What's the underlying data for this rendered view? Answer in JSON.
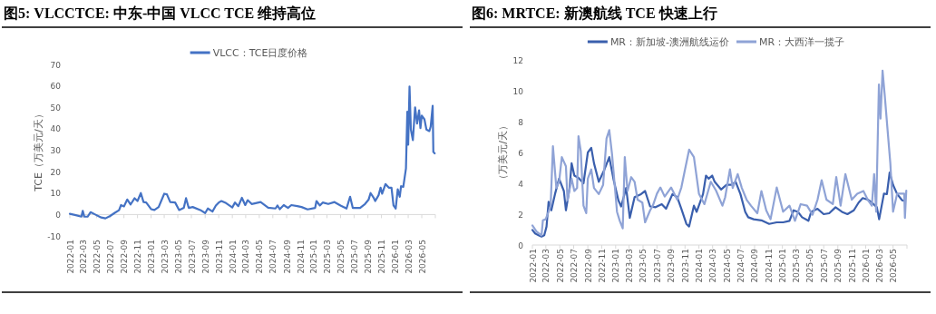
{
  "chart_data": [
    {
      "type": "line",
      "title": "图5:  VLCCTCE:  中东-中国 VLCC TCE 维持高位",
      "ylabel": "TCE（万美元/天）",
      "legend": "top",
      "line_style": "solid",
      "xlim": [
        "2022-01",
        "2026-07"
      ],
      "ylim": [
        -10,
        70
      ],
      "yticks": [
        -10,
        0,
        10,
        20,
        30,
        40,
        50,
        60,
        70
      ],
      "xticks": [
        "2022-01",
        "2022-03",
        "2022-05",
        "2022-07",
        "2022-09",
        "2022-11",
        "2023-01",
        "2023-03",
        "2023-05",
        "2023-07",
        "2023-09",
        "2023-11",
        "2024-01",
        "2024-03",
        "2024-05",
        "2024-07",
        "2024-09",
        "2024-11",
        "2025-01",
        "2025-03",
        "2025-05",
        "2025-07",
        "2025-09",
        "2025-11",
        "2026-01",
        "2026-03",
        "2026-05"
      ],
      "series": [
        {
          "name": "VLCC：TCE日度价格",
          "color": "#4472c4",
          "x": [
            "2022-01-01",
            "2022-01-28",
            "2022-02-22",
            "2022-02-28",
            "2022-03-07",
            "2022-03-22",
            "2022-04-04",
            "2022-04-25",
            "2022-05-22",
            "2022-06-10",
            "2022-07-01",
            "2022-07-22",
            "2022-08-10",
            "2022-08-19",
            "2022-09-01",
            "2022-09-16",
            "2022-10-01",
            "2022-10-19",
            "2022-11-01",
            "2022-11-16",
            "2022-11-28",
            "2022-12-10",
            "2023-01-01",
            "2023-01-16",
            "2023-02-04",
            "2023-03-01",
            "2023-03-13",
            "2023-03-28",
            "2023-04-19",
            "2023-05-07",
            "2023-05-28",
            "2023-06-07",
            "2023-06-19",
            "2023-07-07",
            "2023-08-10",
            "2023-09-01",
            "2023-09-13",
            "2023-10-04",
            "2023-10-19",
            "2023-11-01",
            "2023-11-13",
            "2023-12-04",
            "2024-01-01",
            "2024-01-13",
            "2024-01-28",
            "2024-02-13",
            "2024-02-28",
            "2024-03-10",
            "2024-03-28",
            "2024-05-07",
            "2024-06-10",
            "2024-07-13",
            "2024-07-22",
            "2024-08-01",
            "2024-08-19",
            "2024-09-07",
            "2024-09-22",
            "2024-10-19",
            "2024-11-07",
            "2024-12-04",
            "2025-01-07",
            "2025-01-13",
            "2025-01-28",
            "2025-02-10",
            "2025-03-07",
            "2025-04-04",
            "2025-05-01",
            "2025-05-28",
            "2025-06-13",
            "2025-06-25",
            "2025-07-28",
            "2025-08-19",
            "2025-09-04",
            "2025-09-13",
            "2025-09-28",
            "2025-10-04",
            "2025-10-19",
            "2025-10-28",
            "2025-11-04",
            "2025-11-19",
            "2025-12-04",
            "2025-12-16",
            "2025-12-25",
            "2026-01-04",
            "2026-01-13",
            "2026-01-22",
            "2026-01-28",
            "2026-02-07",
            "2026-02-19",
            "2026-02-25",
            "2026-03-01",
            "2026-03-07",
            "2026-03-13",
            "2026-03-22",
            "2026-04-01",
            "2026-04-10",
            "2026-04-19",
            "2026-04-25",
            "2026-05-01",
            "2026-05-13",
            "2026-05-22",
            "2026-06-04",
            "2026-06-10",
            "2026-06-19",
            "2026-06-22",
            "2026-06-28"
          ],
          "values": [
            0.3,
            -0.3,
            -1,
            1.7,
            -1,
            -1,
            1.1,
            0,
            -1.4,
            -1.8,
            -0.7,
            0.8,
            2,
            4.4,
            3.8,
            7,
            4.7,
            7.6,
            6.3,
            10,
            5.8,
            5.6,
            2.5,
            2.1,
            3.5,
            9.7,
            9.4,
            5.8,
            5.6,
            2.1,
            3.1,
            7.6,
            3.1,
            3.5,
            2.1,
            0.7,
            2.8,
            1.4,
            4.2,
            5.6,
            6.3,
            5.3,
            3.3,
            5.6,
            3.9,
            7.8,
            4.4,
            6.7,
            4.9,
            5.8,
            3.2,
            2.8,
            4.2,
            2.5,
            4.4,
            3.1,
            4.4,
            3.9,
            3.5,
            2.4,
            3.1,
            6.3,
            4.2,
            5.6,
            4.9,
            5.8,
            4.2,
            2.8,
            8.3,
            3.1,
            3.1,
            4.9,
            6.9,
            10,
            7.6,
            6.3,
            9,
            12.5,
            9.7,
            14.2,
            12.5,
            12.5,
            4.2,
            2.8,
            11.8,
            8.3,
            13.2,
            12.9,
            21.5,
            47.9,
            32.6,
            59.7,
            39.6,
            34.7,
            50,
            42.4,
            48.6,
            40.3,
            46.1,
            44.4,
            39.6,
            38.9,
            41,
            50.7,
            29.2,
            28.5
          ]
        }
      ]
    },
    {
      "type": "line",
      "title": "图6:  MRTCE:  新澳航线 TCE 快速上行",
      "ylabel": "（万美元/天）",
      "legend": "top",
      "line_style": "solid",
      "xlim": [
        "2022-01",
        "2026-07"
      ],
      "ylim": [
        0,
        12
      ],
      "yticks": [
        0,
        2,
        4,
        6,
        8,
        10,
        12
      ],
      "xticks": [
        "2022-01",
        "2022-03",
        "2022-05",
        "2022-07",
        "2022-09",
        "2022-11",
        "2023-01",
        "2023-03",
        "2023-05",
        "2023-07",
        "2023-09",
        "2023-11",
        "2024-01",
        "2024-03",
        "2024-05",
        "2024-07",
        "2024-09",
        "2024-11",
        "2025-01",
        "2025-03",
        "2025-05",
        "2025-07",
        "2025-09",
        "2025-11",
        "2026-01",
        "2026-03",
        "2026-05"
      ],
      "series": [
        {
          "name": "MR：新加坡-澳洲航线运价",
          "color": "#3a5fad",
          "x": [
            "2022-01-01",
            "2022-01-13",
            "2022-02-01",
            "2022-02-10",
            "2022-02-22",
            "2022-03-04",
            "2022-03-13",
            "2022-03-25",
            "2022-04-10",
            "2022-04-28",
            "2022-05-19",
            "2022-05-28",
            "2022-06-13",
            "2022-06-22",
            "2022-07-04",
            "2022-07-22",
            "2022-08-13",
            "2022-09-01",
            "2022-09-16",
            "2022-09-28",
            "2022-10-19",
            "2022-11-13",
            "2022-12-04",
            "2022-12-22",
            "2023-01-13",
            "2023-01-25",
            "2023-02-16",
            "2023-03-04",
            "2023-03-25",
            "2023-04-22",
            "2023-05-10",
            "2023-06-01",
            "2023-06-25",
            "2023-07-22",
            "2023-08-10",
            "2023-09-07",
            "2023-09-28",
            "2023-10-16",
            "2023-11-07",
            "2023-11-19",
            "2023-12-10",
            "2023-12-22",
            "2024-01-19",
            "2024-02-01",
            "2024-02-13",
            "2024-02-28",
            "2024-03-10",
            "2024-04-07",
            "2024-05-01",
            "2024-05-22",
            "2024-06-10",
            "2024-07-01",
            "2024-07-22",
            "2024-08-04",
            "2024-08-28",
            "2024-10-01",
            "2024-11-04",
            "2024-12-07",
            "2025-01-04",
            "2025-02-01",
            "2025-02-19",
            "2025-03-10",
            "2025-03-28",
            "2025-04-25",
            "2025-05-07",
            "2025-06-04",
            "2025-07-01",
            "2025-07-25",
            "2025-08-22",
            "2025-09-19",
            "2025-10-13",
            "2025-11-10",
            "2025-12-01",
            "2025-12-19",
            "2026-01-10",
            "2026-01-28",
            "2026-02-19",
            "2026-03-01",
            "2026-03-22",
            "2026-04-04",
            "2026-04-16",
            "2026-05-01",
            "2026-05-19",
            "2026-06-10",
            "2026-06-22"
          ],
          "values": [
            0.98,
            0.75,
            0.6,
            0.55,
            0.63,
            1.2,
            2.8,
            2.25,
            3.3,
            4.3,
            3.5,
            2.25,
            3.7,
            5.3,
            4.5,
            4.35,
            4,
            6,
            6.3,
            5.3,
            4.1,
            4.9,
            5.7,
            4.3,
            2.9,
            2.5,
            3.7,
            1.76,
            3.1,
            3.3,
            3.5,
            2.5,
            2.45,
            2.65,
            2.35,
            3.3,
            3.1,
            2.35,
            1.37,
            1.2,
            2.55,
            2.15,
            3.3,
            4.5,
            4.3,
            4.5,
            4.1,
            3.6,
            3.9,
            3.9,
            4.1,
            3.3,
            2.15,
            1.8,
            1.67,
            1.6,
            1.37,
            1.47,
            1.47,
            1.57,
            2.25,
            2.15,
            1.8,
            1.57,
            2.15,
            2.35,
            2,
            2.06,
            2.45,
            2.15,
            2,
            2.25,
            2.75,
            3.04,
            2.94,
            2.75,
            2.45,
            1.67,
            3.33,
            3.3,
            4.7,
            3.9,
            3.3,
            2.9,
            2.85
          ]
        },
        {
          "name": "MR：大西洋一揽子",
          "color": "#8fa3d6",
          "x": [
            "2022-01-01",
            "2022-01-19",
            "2022-02-10",
            "2022-02-16",
            "2022-02-28",
            "2022-03-13",
            "2022-03-22",
            "2022-04-01",
            "2022-04-16",
            "2022-04-28",
            "2022-05-10",
            "2022-05-28",
            "2022-06-04",
            "2022-06-22",
            "2022-07-04",
            "2022-07-16",
            "2022-07-22",
            "2022-08-01",
            "2022-08-13",
            "2022-08-25",
            "2022-09-01",
            "2022-09-16",
            "2022-09-28",
            "2022-10-19",
            "2022-11-07",
            "2022-11-22",
            "2022-12-04",
            "2022-12-16",
            "2023-01-07",
            "2023-01-19",
            "2023-02-01",
            "2023-02-10",
            "2023-02-22",
            "2023-03-10",
            "2023-03-25",
            "2023-04-07",
            "2023-04-28",
            "2023-05-10",
            "2023-06-01",
            "2023-06-13",
            "2023-07-01",
            "2023-07-16",
            "2023-08-04",
            "2023-09-01",
            "2023-09-28",
            "2023-10-16",
            "2023-11-01",
            "2023-11-19",
            "2023-12-10",
            "2024-01-01",
            "2024-01-25",
            "2024-02-22",
            "2024-03-16",
            "2024-04-13",
            "2024-04-25",
            "2024-05-16",
            "2024-05-28",
            "2024-06-19",
            "2024-07-07",
            "2024-07-28",
            "2024-08-16",
            "2024-09-13",
            "2024-10-01",
            "2024-10-22",
            "2024-11-10",
            "2024-12-07",
            "2025-01-04",
            "2025-02-01",
            "2025-02-25",
            "2025-03-22",
            "2025-04-19",
            "2025-05-13",
            "2025-06-04",
            "2025-06-22",
            "2025-07-13",
            "2025-08-10",
            "2025-08-25",
            "2025-09-13",
            "2025-10-04",
            "2025-11-01",
            "2025-11-25",
            "2025-12-22",
            "2026-01-10",
            "2026-01-28",
            "2026-02-07",
            "2026-02-16",
            "2026-02-28",
            "2026-03-07",
            "2026-03-16",
            "2026-03-25",
            "2026-04-07",
            "2026-04-19",
            "2026-05-01",
            "2026-05-19",
            "2026-06-19",
            "2026-06-22",
            "2026-06-28"
          ],
          "values": [
            1.27,
            0.88,
            0.63,
            1.6,
            1.67,
            2.16,
            2.55,
            6.4,
            3.7,
            4.1,
            5.7,
            5.1,
            2.9,
            4.3,
            3.5,
            3.7,
            7.06,
            6.1,
            2.55,
            2.06,
            4.3,
            4.9,
            3.7,
            3.3,
            3.9,
            6.9,
            7.45,
            5.9,
            2.15,
            1.57,
            1.08,
            5.7,
            3.5,
            4.4,
            4.1,
            2.94,
            2.75,
            1.47,
            2.25,
            2.55,
            3.33,
            3.73,
            3.14,
            3.73,
            2.94,
            3.73,
            4.9,
            6.18,
            5.7,
            3.33,
            2.65,
            4.1,
            3.53,
            2.55,
            3.1,
            4.9,
            3.7,
            4.6,
            3.7,
            2.94,
            2.55,
            2.06,
            3.5,
            2.25,
            1.67,
            3.73,
            2.16,
            2.55,
            1.57,
            2.65,
            2.55,
            1.96,
            2.94,
            4.2,
            2.94,
            2.65,
            4.4,
            2.55,
            4.6,
            2.94,
            3.33,
            3.5,
            2.94,
            2.55,
            4.6,
            2.16,
            10.4,
            8.2,
            11.3,
            9.8,
            7.45,
            5.3,
            2.16,
            3.33,
            3.33,
            1.76,
            3.53
          ]
        }
      ]
    }
  ]
}
